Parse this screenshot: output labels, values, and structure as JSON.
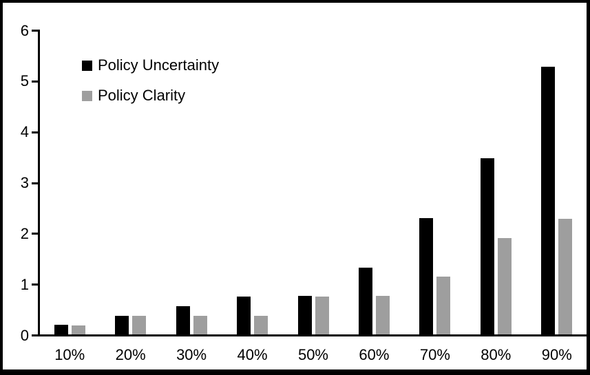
{
  "chart_data": {
    "type": "bar",
    "title": "",
    "xlabel": "",
    "ylabel": "",
    "categories": [
      "10%",
      "20%",
      "30%",
      "40%",
      "50%",
      "60%",
      "70%",
      "80%",
      "90%"
    ],
    "series": [
      {
        "name": "Policy Uncertainty",
        "color": "#000000",
        "values": [
          0.19,
          0.37,
          0.56,
          0.75,
          0.76,
          1.31,
          2.29,
          3.47,
          5.27
        ]
      },
      {
        "name": "Policy Clarity",
        "color": "#9e9e9e",
        "values": [
          0.18,
          0.37,
          0.37,
          0.37,
          0.75,
          0.76,
          1.14,
          1.89,
          2.28
        ]
      }
    ],
    "ylim": [
      0,
      6
    ],
    "yticks": [
      0,
      1,
      2,
      3,
      4,
      5,
      6
    ],
    "grid": false,
    "legend_position": "top-left-inside"
  },
  "frame": {
    "background": "#ffffff",
    "border_color": "#000000"
  }
}
